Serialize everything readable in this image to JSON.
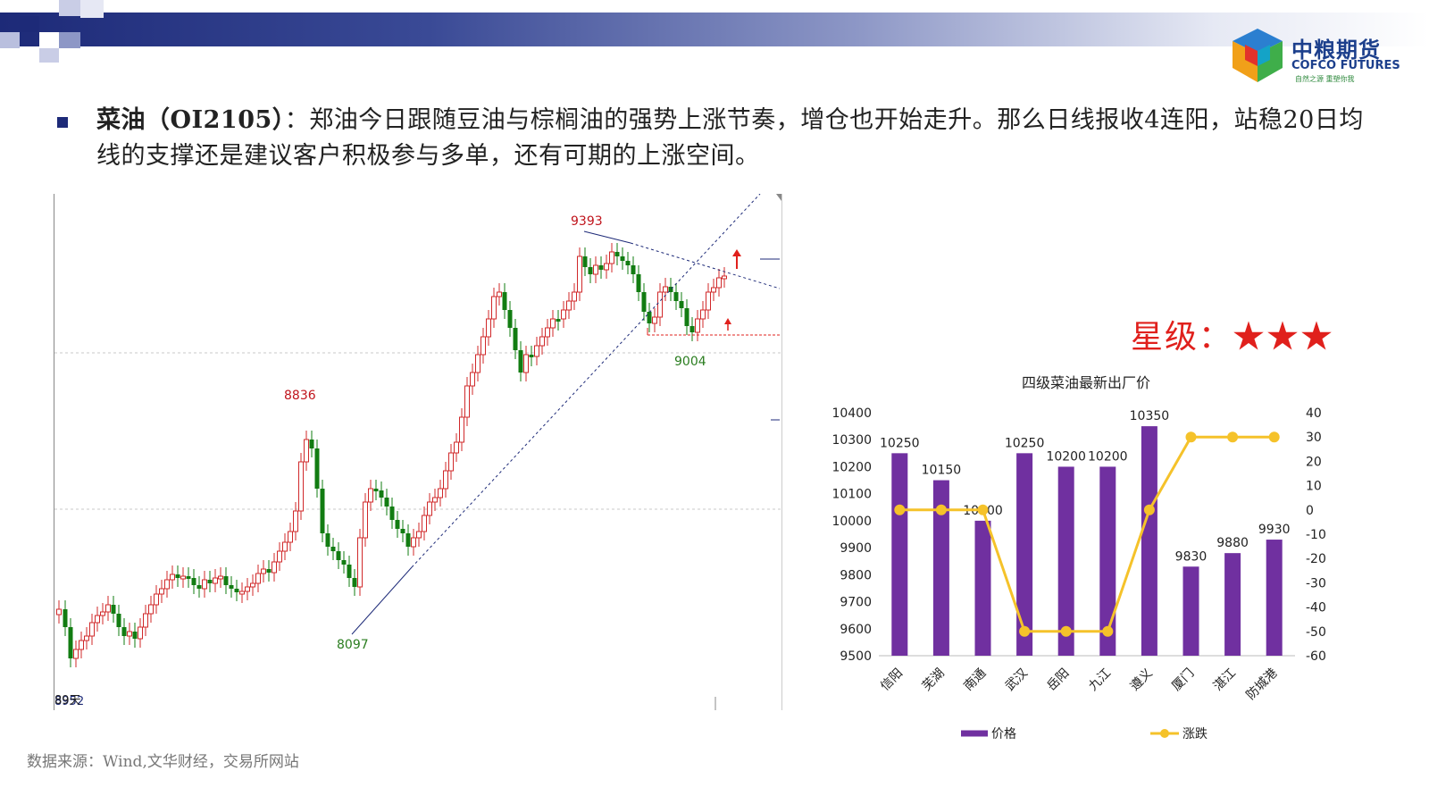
{
  "headline": {
    "bold": "菜油（OI2105）",
    "text": "：郑油今日跟随豆油与棕榈油的强势上涨节奏，增仓也开始走升。那么日线报收4连阳，站稳20日均线的支撑还是建议客户积极参与多单，还有可期的上涨空间。"
  },
  "logo": {
    "cn": "中粮期货",
    "en": "COFCO FUTURES",
    "tagline": "自然之源 重塑你我"
  },
  "rating": {
    "label": "星级：",
    "stars": "★★★"
  },
  "source": "数据来源：Wind,文华财经，交易所网站",
  "kline": {
    "annotations": [
      "9393",
      "9004",
      "8836",
      "8097"
    ],
    "corner_label": "89天",
    "corner_value": "8952"
  },
  "chart_data": [
    {
      "type": "candlestick",
      "title": "",
      "points": [
        {
          "label": "9393",
          "value": 9393,
          "kind": "high"
        },
        {
          "label": "8836",
          "value": 8836,
          "kind": "high"
        },
        {
          "label": "9004",
          "value": 9004,
          "kind": "low"
        },
        {
          "label": "8097",
          "value": 8097,
          "kind": "low"
        }
      ]
    },
    {
      "type": "bar",
      "title": "四级菜油最新出厂价",
      "categories": [
        "信阳",
        "芜湖",
        "南通",
        "武汉",
        "岳阳",
        "九江",
        "遵义",
        "厦门",
        "湛江",
        "防城港"
      ],
      "series": [
        {
          "name": "价格",
          "type": "bar",
          "axis": "left",
          "color": "#7030a0",
          "values": [
            10250,
            10150,
            10000,
            10250,
            10200,
            10200,
            10350,
            9830,
            9880,
            9930
          ],
          "labels": [
            "10250",
            "10150",
            "10000",
            "10250",
            "10200",
            "10200",
            "10350",
            "9830",
            "9880",
            "9930"
          ]
        },
        {
          "name": "涨跌",
          "type": "line",
          "axis": "right",
          "color": "#f5c22a",
          "values": [
            0,
            0,
            0,
            -50,
            -50,
            -50,
            0,
            30,
            30,
            30
          ]
        }
      ],
      "ylim_left": [
        9500,
        10400
      ],
      "yticks_left": [
        "10400",
        "10300",
        "10200",
        "10100",
        "10000",
        "9900",
        "9800",
        "9700",
        "9600",
        "9500"
      ],
      "ylim_right": [
        -60,
        40
      ],
      "yticks_right": [
        "40",
        "30",
        "20",
        "10",
        "0",
        "-10",
        "-20",
        "-30",
        "-40",
        "-50",
        "-60"
      ],
      "legend": "bottom"
    }
  ]
}
